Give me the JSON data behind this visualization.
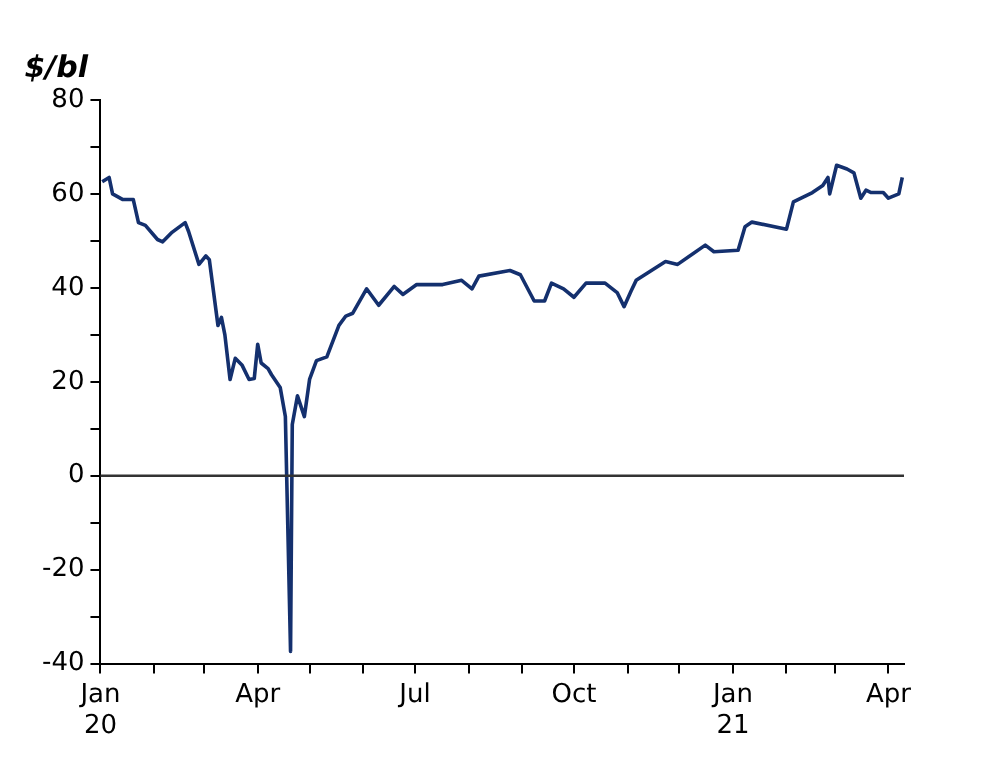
{
  "chart_data": {
    "type": "line",
    "ylabel": "$/bl",
    "x": [
      "2020-01-02",
      "2020-01-06",
      "2020-01-08",
      "2020-01-14",
      "2020-01-20",
      "2020-01-23",
      "2020-01-27",
      "2020-02-03",
      "2020-02-06",
      "2020-02-11",
      "2020-02-19",
      "2020-02-21",
      "2020-02-27",
      "2020-03-02",
      "2020-03-04",
      "2020-03-09",
      "2020-03-11",
      "2020-03-13",
      "2020-03-16",
      "2020-03-19",
      "2020-03-23",
      "2020-03-27",
      "2020-03-30",
      "2020-04-01",
      "2020-04-03",
      "2020-04-07",
      "2020-04-09",
      "2020-04-14",
      "2020-04-17",
      "2020-04-20",
      "2020-04-21",
      "2020-04-24",
      "2020-04-28",
      "2020-05-01",
      "2020-05-05",
      "2020-05-11",
      "2020-05-18",
      "2020-05-22",
      "2020-05-26",
      "2020-06-03",
      "2020-06-10",
      "2020-06-19",
      "2020-06-24",
      "2020-07-02",
      "2020-07-17",
      "2020-07-28",
      "2020-08-03",
      "2020-08-07",
      "2020-08-25",
      "2020-08-31",
      "2020-09-08",
      "2020-09-14",
      "2020-09-18",
      "2020-09-25",
      "2020-10-01",
      "2020-10-08",
      "2020-10-19",
      "2020-10-26",
      "2020-10-30",
      "2020-11-03",
      "2020-11-06",
      "2020-11-23",
      "2020-11-30",
      "2020-12-16",
      "2020-12-21",
      "2021-01-04",
      "2021-01-08",
      "2021-01-12",
      "2021-02-01",
      "2021-02-05",
      "2021-02-16",
      "2021-02-22",
      "2021-02-25",
      "2021-02-26",
      "2021-03-02",
      "2021-03-08",
      "2021-03-12",
      "2021-03-16",
      "2021-03-19",
      "2021-03-22",
      "2021-03-29",
      "2021-04-01",
      "2021-04-07",
      "2021-04-09"
    ],
    "series": [
      {
        "color": "#14306e",
        "values": [
          62.6,
          63.5,
          60,
          58.8,
          58.8,
          53.9,
          53.3,
          50.3,
          49.8,
          51.7,
          53.9,
          52,
          45,
          46.8,
          46,
          32,
          33.7,
          30,
          20.5,
          25,
          23.5,
          20.5,
          20.7,
          28,
          24,
          22.8,
          21.5,
          18.8,
          12.6,
          -37.4,
          10.9,
          17,
          12.6,
          20.5,
          24.5,
          25.3,
          32,
          34,
          34.6,
          39.8,
          36.3,
          40.3,
          38.6,
          40.7,
          40.7,
          41.6,
          39.8,
          42.5,
          43.7,
          42.8,
          37.2,
          37.2,
          41,
          39.8,
          38,
          41,
          41,
          39,
          36,
          39.3,
          41.6,
          45.6,
          45,
          49.1,
          47.7,
          48,
          53,
          54,
          52.5,
          58.3,
          60.3,
          61.8,
          63.5,
          60,
          66.1,
          65.3,
          64.5,
          59.1,
          60.8,
          60.3,
          60.3,
          59.1,
          60,
          63.5
        ]
      }
    ],
    "xlim": [
      "2020-01-01",
      "2021-04-10"
    ],
    "xticks": [
      {
        "value": "2020-01-01",
        "label": "Jan\n20"
      },
      {
        "value": "2020-02-01",
        "label": null
      },
      {
        "value": "2020-03-01",
        "label": null
      },
      {
        "value": "2020-04-01",
        "label": "Apr"
      },
      {
        "value": "2020-05-01",
        "label": null
      },
      {
        "value": "2020-06-01",
        "label": null
      },
      {
        "value": "2020-07-01",
        "label": "Jul"
      },
      {
        "value": "2020-08-01",
        "label": null
      },
      {
        "value": "2020-09-01",
        "label": null
      },
      {
        "value": "2020-10-01",
        "label": "Oct"
      },
      {
        "value": "2020-11-01",
        "label": null
      },
      {
        "value": "2020-12-01",
        "label": null
      },
      {
        "value": "2021-01-01",
        "label": "Jan\n21"
      },
      {
        "value": "2021-02-01",
        "label": null
      },
      {
        "value": "2021-03-01",
        "label": null
      },
      {
        "value": "2021-04-01",
        "label": "Apr"
      }
    ],
    "ylim": [
      -40,
      80
    ],
    "yticks": [
      -40,
      {
        "value": -30,
        "label": null
      },
      -20,
      {
        "value": -10,
        "label": null
      },
      0,
      {
        "value": 10,
        "label": null
      },
      20,
      {
        "value": 30,
        "label": null
      },
      40,
      {
        "value": 50,
        "label": null
      },
      60,
      {
        "value": 70,
        "label": null
      },
      80
    ],
    "ref_lines": [
      {
        "axis": "y",
        "value": 0,
        "color": "#333333"
      }
    ],
    "grid": false,
    "legend": false,
    "marker": "none",
    "line_style": "solid"
  }
}
